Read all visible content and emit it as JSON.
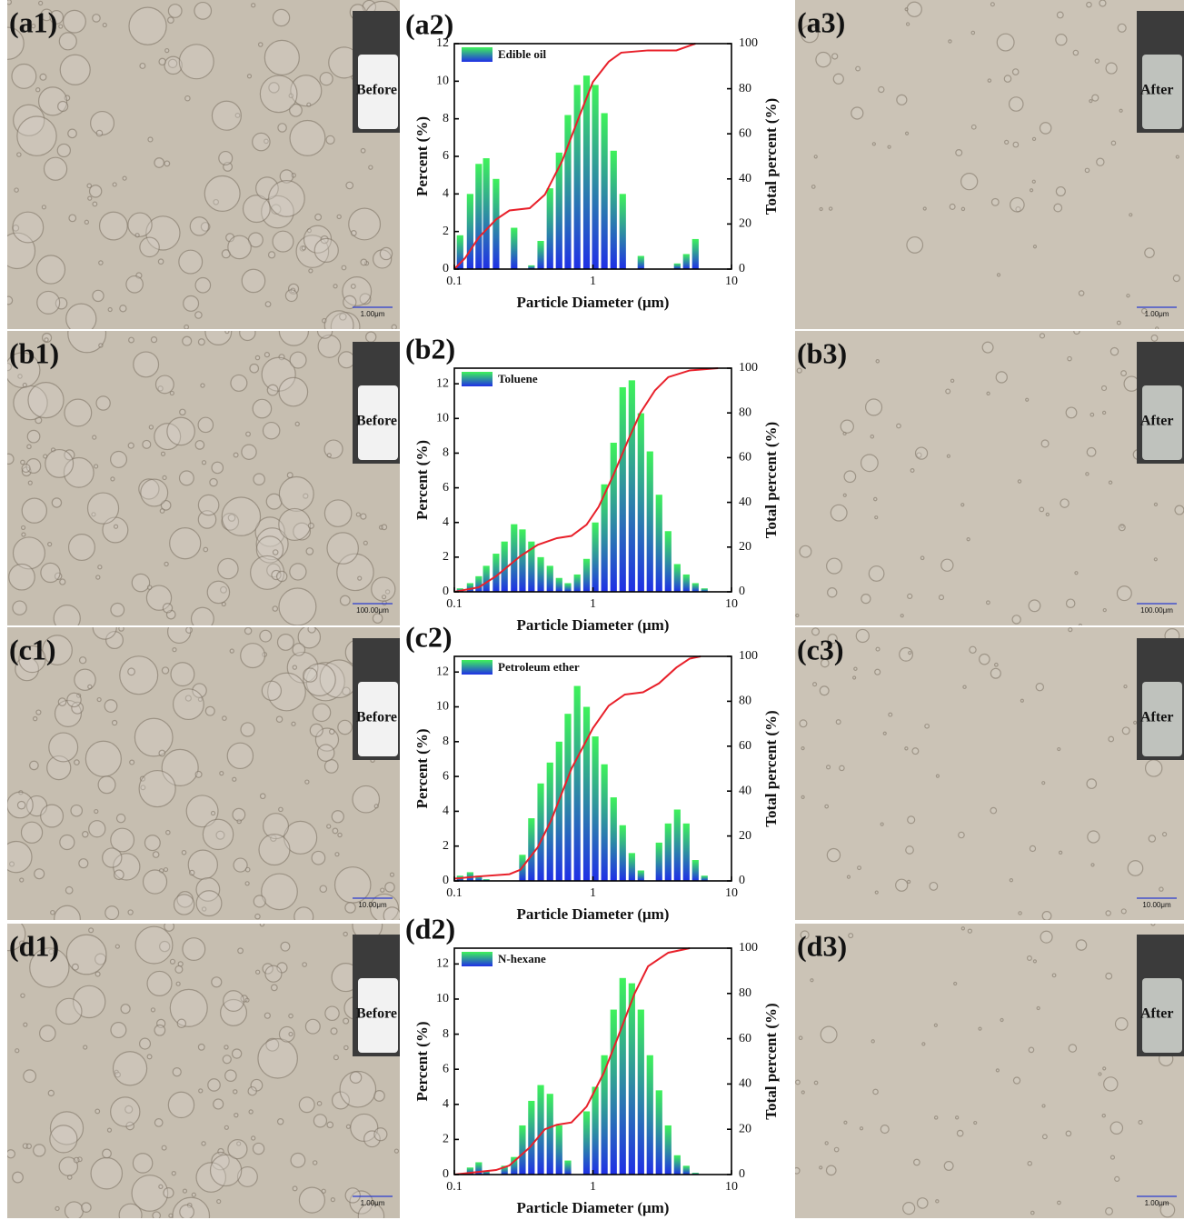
{
  "rows": [
    {
      "left": {
        "label": "(a1)",
        "tag": "Before",
        "scale": "1.00μm"
      },
      "right": {
        "label": "(a3)",
        "tag": "After",
        "scale": "1.00μm"
      }
    },
    {
      "left": {
        "label": "(b1)",
        "tag": "Before",
        "scale": "100.00μm"
      },
      "right": {
        "label": "(b3)",
        "tag": "After",
        "scale": "100.00μm"
      }
    },
    {
      "left": {
        "label": "(c1)",
        "tag": "Before",
        "scale": "10.00μm"
      },
      "right": {
        "label": "(c3)",
        "tag": "After",
        "scale": "10.00μm"
      }
    },
    {
      "left": {
        "label": "(d1)",
        "tag": "Before",
        "scale": "1.00μm"
      },
      "right": {
        "label": "(d3)",
        "tag": "After",
        "scale": "1.00μm"
      }
    }
  ],
  "chart_data": [
    {
      "type": "bar",
      "label": "(a2)",
      "x_label": "Particle Diameter (μm)",
      "y_label": "Percent (%)",
      "y2_label": "Total percent (%)",
      "log_x": true,
      "legend": "upper left",
      "xlim": [
        0.1,
        10
      ],
      "xticks": [
        0.1,
        1,
        10
      ],
      "ylim": [
        0,
        12
      ],
      "yticks": [
        0,
        2,
        4,
        6,
        8,
        10,
        12
      ],
      "y2lim": [
        0,
        100
      ],
      "y2ticks": [
        0,
        20,
        40,
        60,
        80,
        100
      ],
      "x": [
        0.11,
        0.13,
        0.15,
        0.17,
        0.2,
        0.27,
        0.36,
        0.42,
        0.49,
        0.57,
        0.66,
        0.77,
        0.9,
        1.04,
        1.21,
        1.41,
        1.64,
        2.22,
        4.06,
        4.72,
        5.49
      ],
      "series": [
        {
          "name": "Edible oil",
          "color": [
            "#3ef25a",
            "#1f2fe6"
          ],
          "values": [
            1.8,
            4.0,
            5.6,
            5.9,
            4.8,
            2.2,
            0.2,
            1.5,
            4.3,
            6.2,
            8.2,
            9.8,
            10.3,
            9.8,
            8.3,
            6.3,
            4.0,
            0.7,
            0.3,
            0.8,
            1.6
          ]
        },
        {
          "type": "line",
          "axis": "y2",
          "color": "#e8202a",
          "x": [
            0.1,
            0.12,
            0.15,
            0.2,
            0.25,
            0.35,
            0.45,
            0.6,
            0.8,
            1.0,
            1.3,
            1.6,
            2.5,
            4,
            5.5
          ],
          "values": [
            0,
            5,
            14,
            22,
            26,
            27,
            33,
            48,
            68,
            83,
            92,
            96,
            97,
            97,
            100
          ]
        }
      ]
    },
    {
      "type": "bar",
      "label": "(b2)",
      "x_label": "Particle Diameter (μm)",
      "y_label": "Percent (%)",
      "y2_label": "Total percent (%)",
      "log_x": true,
      "legend": "upper left",
      "xlim": [
        0.1,
        10
      ],
      "xticks": [
        0.1,
        1,
        10
      ],
      "ylim": [
        0,
        12.9
      ],
      "yticks": [
        0,
        2,
        4,
        6,
        8,
        10,
        12
      ],
      "y2lim": [
        0,
        100
      ],
      "y2ticks": [
        0,
        20,
        40,
        60,
        80,
        100
      ],
      "x": [
        0.11,
        0.13,
        0.15,
        0.17,
        0.2,
        0.23,
        0.27,
        0.31,
        0.36,
        0.42,
        0.49,
        0.57,
        0.66,
        0.77,
        0.9,
        1.04,
        1.21,
        1.41,
        1.64,
        1.91,
        2.22,
        2.58,
        3.0,
        3.49,
        4.06,
        4.72,
        5.49,
        6.38
      ],
      "series": [
        {
          "name": "Toluene",
          "color": [
            "#3ef25a",
            "#1f2fe6"
          ],
          "values": [
            0.2,
            0.5,
            0.9,
            1.5,
            2.2,
            2.9,
            3.9,
            3.6,
            2.9,
            2.0,
            1.5,
            0.8,
            0.5,
            1.0,
            1.9,
            4.0,
            6.2,
            8.6,
            11.8,
            12.2,
            10.3,
            8.1,
            5.6,
            3.5,
            1.6,
            1.0,
            0.5,
            0.2
          ]
        },
        {
          "type": "line",
          "axis": "y2",
          "color": "#e8202a",
          "x": [
            0.1,
            0.15,
            0.2,
            0.3,
            0.4,
            0.55,
            0.7,
            0.9,
            1.1,
            1.4,
            1.8,
            2.2,
            2.8,
            3.5,
            5,
            8
          ],
          "values": [
            0,
            2,
            7,
            16,
            21,
            24,
            25,
            30,
            38,
            52,
            68,
            80,
            90,
            96,
            99,
            100
          ]
        }
      ]
    },
    {
      "type": "bar",
      "label": "(c2)",
      "x_label": "Particle Diameter (μm)",
      "y_label": "Percent (%)",
      "y2_label": "Total percent (%)",
      "log_x": true,
      "legend": "upper left",
      "xlim": [
        0.1,
        10
      ],
      "xticks": [
        0.1,
        1,
        10
      ],
      "ylim": [
        0,
        12.9
      ],
      "yticks": [
        0,
        2,
        4,
        6,
        8,
        10,
        12
      ],
      "y2lim": [
        0,
        100
      ],
      "y2ticks": [
        0,
        20,
        40,
        60,
        80,
        100
      ],
      "x": [
        0.11,
        0.13,
        0.15,
        0.17,
        0.31,
        0.36,
        0.42,
        0.49,
        0.57,
        0.66,
        0.77,
        0.9,
        1.04,
        1.21,
        1.41,
        1.64,
        1.91,
        2.22,
        3.0,
        3.49,
        4.06,
        4.72,
        5.49,
        6.38
      ],
      "series": [
        {
          "name": "Petroleum ether",
          "color": [
            "#3ef25a",
            "#1f2fe6"
          ],
          "values": [
            0.3,
            0.5,
            0.3,
            0.1,
            1.5,
            3.6,
            5.6,
            6.8,
            8.0,
            9.6,
            11.2,
            10.0,
            8.3,
            6.7,
            4.8,
            3.2,
            1.6,
            0.6,
            2.2,
            3.3,
            4.1,
            3.3,
            1.2,
            0.3
          ]
        },
        {
          "type": "line",
          "axis": "y2",
          "color": "#e8202a",
          "x": [
            0.1,
            0.15,
            0.25,
            0.3,
            0.4,
            0.5,
            0.7,
            1.0,
            1.3,
            1.7,
            2.3,
            3.0,
            4,
            5,
            6
          ],
          "values": [
            1,
            2,
            3,
            5,
            15,
            27,
            50,
            68,
            78,
            83,
            84,
            88,
            95,
            99,
            100
          ]
        }
      ]
    },
    {
      "type": "bar",
      "label": "(d2)",
      "x_label": "Particle Diameter (μm)",
      "y_label": "Percent (%)",
      "y2_label": "Total percent (%)",
      "log_x": true,
      "legend": "upper left",
      "xlim": [
        0.1,
        10
      ],
      "xticks": [
        0.1,
        1,
        10
      ],
      "ylim": [
        0,
        12.9
      ],
      "yticks": [
        0,
        2,
        4,
        6,
        8,
        10,
        12
      ],
      "y2lim": [
        0,
        100
      ],
      "y2ticks": [
        0,
        20,
        40,
        60,
        80,
        100
      ],
      "x": [
        0.13,
        0.15,
        0.17,
        0.23,
        0.27,
        0.31,
        0.36,
        0.42,
        0.49,
        0.57,
        0.66,
        0.9,
        1.04,
        1.21,
        1.41,
        1.64,
        1.91,
        2.22,
        2.58,
        3.0,
        3.49,
        4.06,
        4.72,
        5.49
      ],
      "series": [
        {
          "name": "N-hexane",
          "color": [
            "#3ef25a",
            "#1f2fe6"
          ],
          "values": [
            0.4,
            0.7,
            0.2,
            0.5,
            1.0,
            2.8,
            4.2,
            5.1,
            4.6,
            2.8,
            0.8,
            3.6,
            5.0,
            6.8,
            9.4,
            11.2,
            10.9,
            9.4,
            6.8,
            4.8,
            2.8,
            1.1,
            0.5,
            0.1
          ]
        },
        {
          "type": "line",
          "axis": "y2",
          "color": "#e8202a",
          "x": [
            0.1,
            0.2,
            0.25,
            0.35,
            0.45,
            0.55,
            0.7,
            0.9,
            1.2,
            1.5,
            2,
            2.5,
            3.5,
            5
          ],
          "values": [
            0,
            2,
            4,
            12,
            20,
            22,
            23,
            30,
            45,
            60,
            80,
            92,
            98,
            100
          ]
        }
      ]
    }
  ]
}
